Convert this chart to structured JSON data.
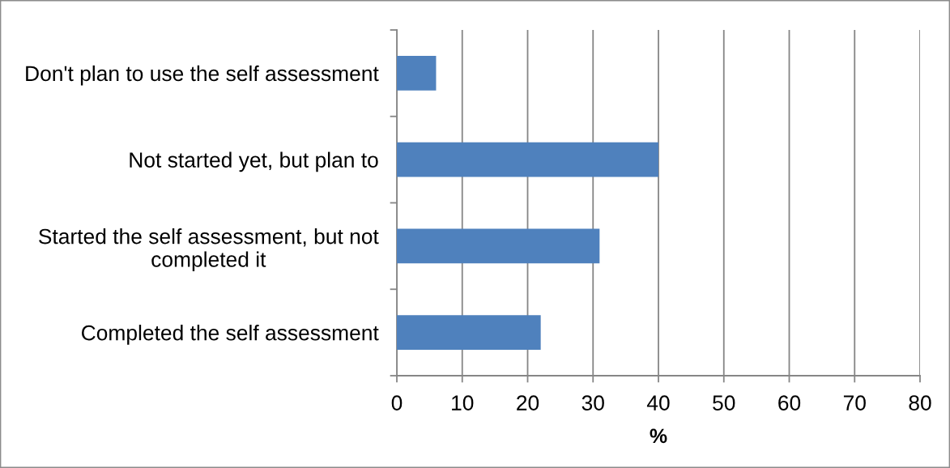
{
  "chart_data": {
    "type": "bar",
    "orientation": "horizontal",
    "categories": [
      "Don't plan to use the self assessment",
      "Not started yet, but plan to",
      "Started the self assessment, but not\ncompleted it",
      "Completed the self assessment"
    ],
    "values": [
      6,
      40,
      31,
      22
    ],
    "color": "#4f81bd",
    "xlabel": "%",
    "xlim": [
      0,
      80
    ],
    "xticks": [
      0,
      10,
      20,
      30,
      40,
      50,
      60,
      70,
      80
    ],
    "grid": "x"
  }
}
